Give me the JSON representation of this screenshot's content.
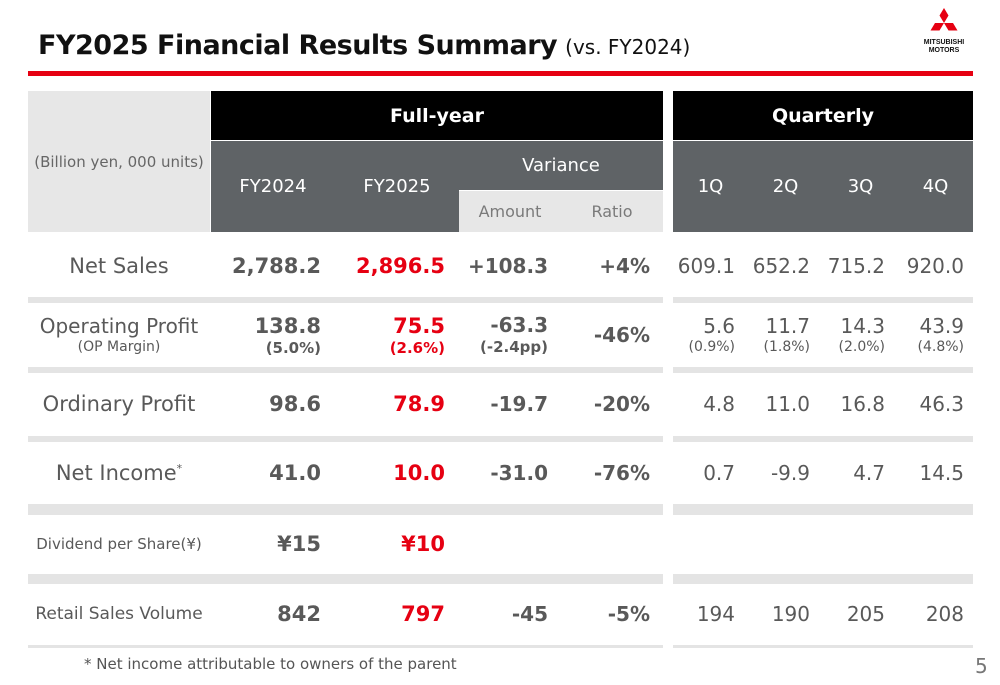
{
  "header": {
    "title": "FY2025 Financial Results Summary",
    "subtitle": "(vs. FY2024)",
    "logo_text_1": "MITSUBISHI",
    "logo_text_2": "MOTORS"
  },
  "table": {
    "unit": "(Billion yen, 000 units)",
    "group_fullyear": "Full-year",
    "group_quarterly": "Quarterly",
    "col_fy2024": "FY2024",
    "col_fy2025": "FY2025",
    "col_variance": "Variance",
    "col_amount": "Amount",
    "col_ratio": "Ratio",
    "col_q1": "1Q",
    "col_q2": "2Q",
    "col_q3": "3Q",
    "col_q4": "4Q",
    "rows": [
      {
        "label": "Net Sales",
        "fy2024": "2,788.2",
        "fy2025": "2,896.5",
        "amount": "+108.3",
        "ratio": "+4%",
        "q1": "609.1",
        "q2": "652.2",
        "q3": "715.2",
        "q4": "920.0"
      },
      {
        "label": "Operating Profit",
        "sublabel": "(OP Margin)",
        "fy2024": "138.8",
        "fy2024_sub": "(5.0%)",
        "fy2025": "75.5",
        "fy2025_sub": "(2.6%)",
        "amount": "-63.3",
        "amount_sub": "(-2.4pp)",
        "ratio": "-46%",
        "q1": "5.6",
        "q1_sub": "(0.9%)",
        "q2": "11.7",
        "q2_sub": "(1.8%)",
        "q3": "14.3",
        "q3_sub": "(2.0%)",
        "q4": "43.9",
        "q4_sub": "(4.8%)"
      },
      {
        "label": "Ordinary Profit",
        "fy2024": "98.6",
        "fy2025": "78.9",
        "amount": "-19.7",
        "ratio": "-20%",
        "q1": "4.8",
        "q2": "11.0",
        "q3": "16.8",
        "q4": "46.3"
      },
      {
        "label": "Net Income",
        "label_sup": "*",
        "fy2024": "41.0",
        "fy2025": "10.0",
        "amount": "-31.0",
        "ratio": "-76%",
        "q1": "0.7",
        "q2": "-9.9",
        "q3": "4.7",
        "q4": "14.5"
      },
      {
        "label": "Dividend per Share(¥)",
        "fy2024": "¥15",
        "fy2025": "¥10"
      },
      {
        "label": "Retail Sales Volume",
        "fy2024": "842",
        "fy2025": "797",
        "amount": "-45",
        "ratio": "-5%",
        "q1": "194",
        "q2": "190",
        "q3": "205",
        "q4": "208"
      }
    ]
  },
  "footnote": "* Net income attributable to owners of the parent",
  "page_number": "5",
  "colors": {
    "accent": "#e60012",
    "header_black": "#000000",
    "header_dark": "#5f6366",
    "header_light": "#e7e7e7"
  }
}
